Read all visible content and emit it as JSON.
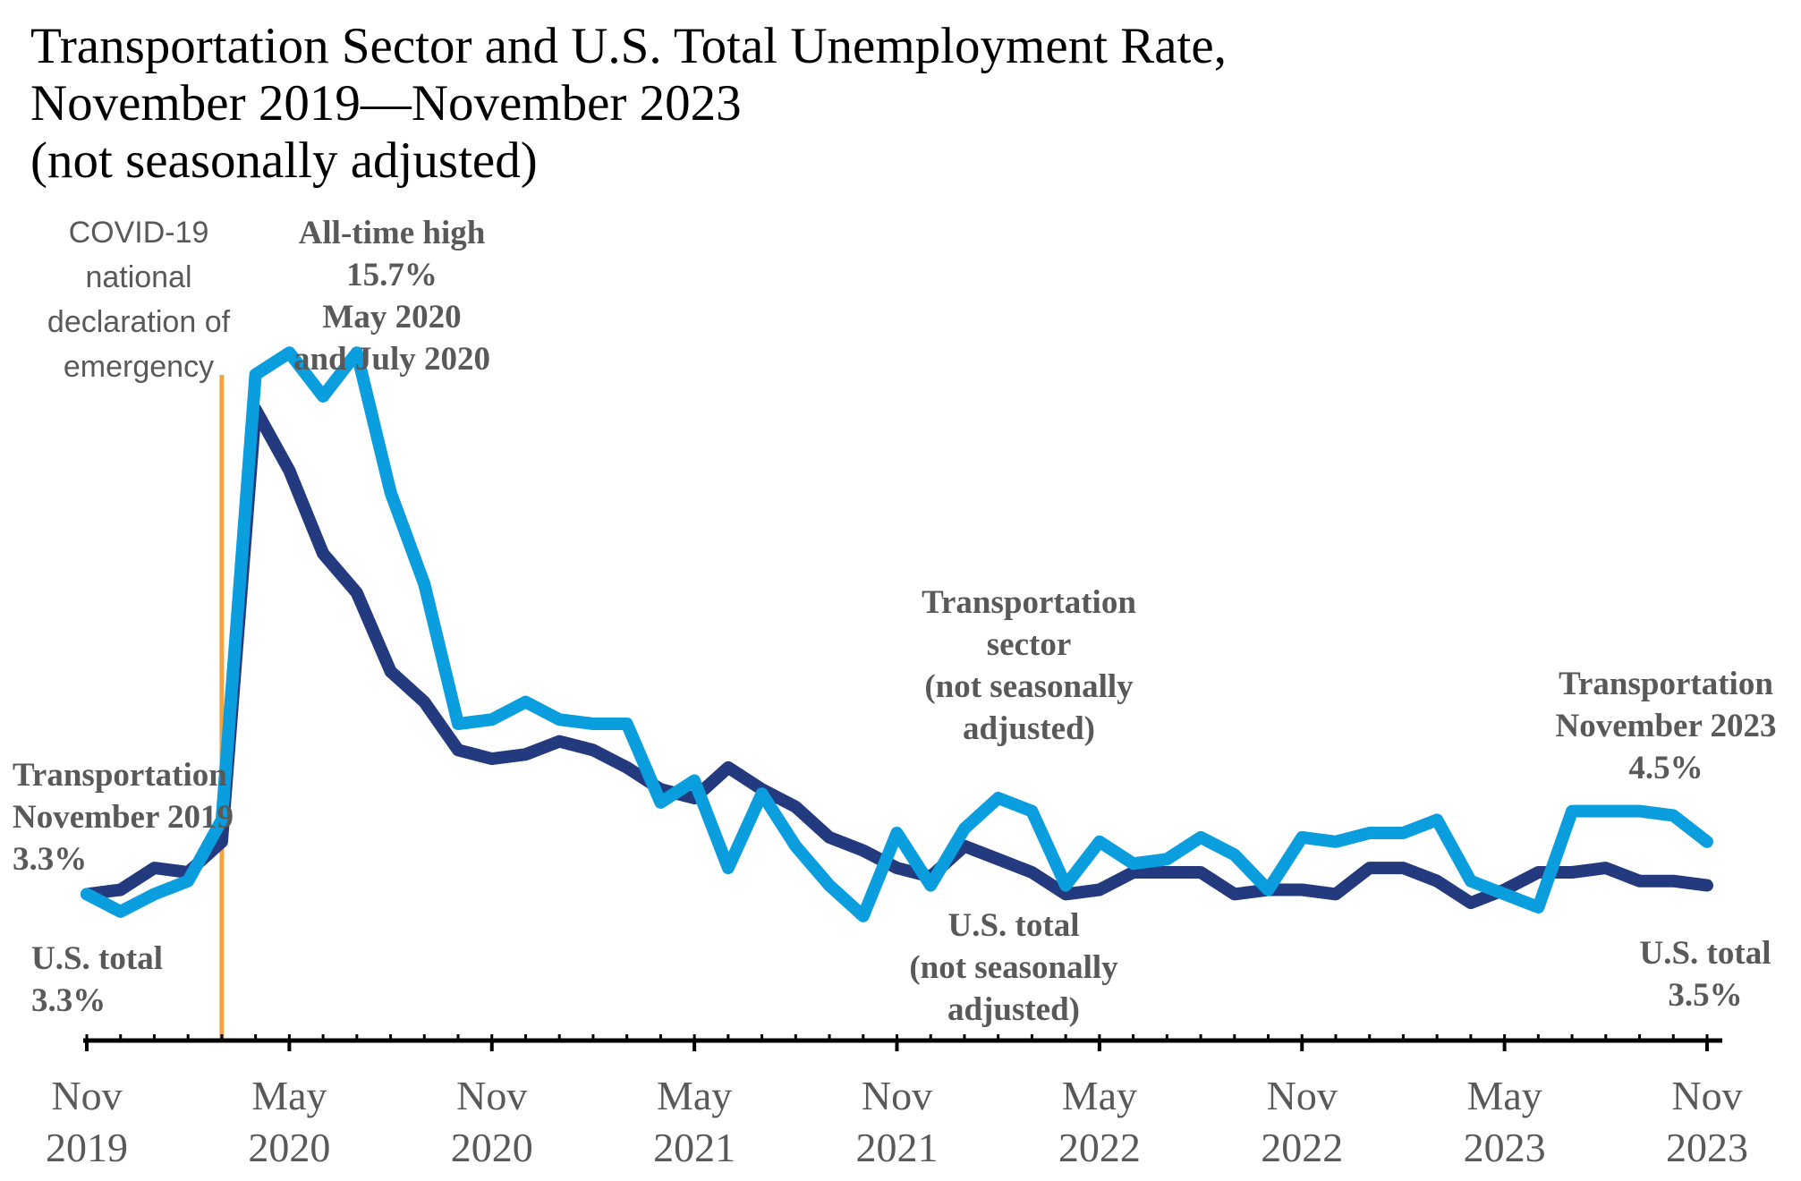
{
  "title": {
    "line1": "Transportation Sector and U.S. Total Unemployment Rate,",
    "line2": "November 2019—November 2023",
    "line3": "(not seasonally adjusted)"
  },
  "colors": {
    "transportation": "#0B9EDE",
    "us_total": "#233A7E",
    "covid_line": "#F5A33A",
    "annotation": "#595959",
    "axis": "#000000"
  },
  "annotations": {
    "covid": [
      "COVID-19",
      "national",
      "declaration of",
      "emergency"
    ],
    "peak": [
      "All-time high",
      "15.7%",
      "May 2020",
      "and July 2020"
    ],
    "trans_start": [
      "Transportation",
      "November 2019",
      "3.3%"
    ],
    "us_start": [
      "U.S. total",
      "3.3%"
    ],
    "trans_series": [
      "Transportation",
      "sector",
      "(not seasonally",
      "adjusted)"
    ],
    "us_series": [
      "U.S. total",
      "(not seasonally",
      "adjusted)"
    ],
    "trans_end": [
      "Transportation",
      "November 2023",
      "4.5%"
    ],
    "us_end": [
      "U.S. total",
      "3.5%"
    ]
  },
  "chart_data": {
    "type": "line",
    "title": "Transportation Sector and U.S. Total Unemployment Rate, November 2019—November 2023 (not seasonally adjusted)",
    "xlabel": "",
    "ylabel": "",
    "ylim": [
      1.0,
      16.5
    ],
    "grid": false,
    "x_ticks": [
      {
        "index": 0,
        "line1": "Nov",
        "line2": "2019"
      },
      {
        "index": 6,
        "line1": "May",
        "line2": "2020"
      },
      {
        "index": 12,
        "line1": "Nov",
        "line2": "2020"
      },
      {
        "index": 18,
        "line1": "May",
        "line2": "2021"
      },
      {
        "index": 24,
        "line1": "Nov",
        "line2": "2021"
      },
      {
        "index": 30,
        "line1": "May",
        "line2": "2022"
      },
      {
        "index": 36,
        "line1": "Nov",
        "line2": "2022"
      },
      {
        "index": 42,
        "line1": "May",
        "line2": "2023"
      },
      {
        "index": 48,
        "line1": "Nov",
        "line2": "2023"
      }
    ],
    "vertical_marker_index": 4,
    "categories": [
      "Nov 2019",
      "Dec 2019",
      "Jan 2020",
      "Feb 2020",
      "Mar 2020",
      "Apr 2020",
      "May 2020",
      "Jun 2020",
      "Jul 2020",
      "Aug 2020",
      "Sep 2020",
      "Oct 2020",
      "Nov 2020",
      "Dec 2020",
      "Jan 2021",
      "Feb 2021",
      "Mar 2021",
      "Apr 2021",
      "May 2021",
      "Jun 2021",
      "Jul 2021",
      "Aug 2021",
      "Sep 2021",
      "Oct 2021",
      "Nov 2021",
      "Dec 2021",
      "Jan 2022",
      "Feb 2022",
      "Mar 2022",
      "Apr 2022",
      "May 2022",
      "Jun 2022",
      "Jul 2022",
      "Aug 2022",
      "Sep 2022",
      "Oct 2022",
      "Nov 2022",
      "Dec 2022",
      "Jan 2023",
      "Feb 2023",
      "Mar 2023",
      "Apr 2023",
      "May 2023",
      "Jun 2023",
      "Jul 2023",
      "Aug 2023",
      "Sep 2023",
      "Oct 2023",
      "Nov 2023"
    ],
    "series": [
      {
        "name": "Transportation sector (not seasonally adjusted)",
        "values": [
          3.3,
          2.9,
          3.3,
          3.6,
          5.0,
          15.2,
          15.7,
          14.7,
          15.7,
          12.5,
          10.4,
          7.2,
          7.3,
          7.7,
          7.3,
          7.2,
          7.2,
          5.4,
          5.9,
          3.9,
          5.6,
          4.4,
          3.5,
          2.8,
          4.7,
          3.5,
          4.8,
          5.5,
          5.2,
          3.5,
          4.5,
          4.0,
          4.1,
          4.6,
          4.2,
          3.4,
          4.6,
          4.5,
          4.7,
          4.7,
          5.0,
          3.6,
          3.3,
          3.0,
          5.2,
          5.2,
          5.2,
          5.1,
          4.5
        ]
      },
      {
        "name": "U.S. total (not seasonally adjusted)",
        "values": [
          3.3,
          3.4,
          3.9,
          3.8,
          4.5,
          14.4,
          13.0,
          11.1,
          10.2,
          8.4,
          7.7,
          6.6,
          6.4,
          6.5,
          6.8,
          6.6,
          6.2,
          5.7,
          5.5,
          6.2,
          5.7,
          5.3,
          4.6,
          4.3,
          3.9,
          3.7,
          4.4,
          4.1,
          3.8,
          3.3,
          3.4,
          3.8,
          3.8,
          3.8,
          3.3,
          3.4,
          3.4,
          3.3,
          3.9,
          3.9,
          3.6,
          3.1,
          3.4,
          3.8,
          3.8,
          3.9,
          3.6,
          3.6,
          3.5
        ]
      }
    ]
  }
}
